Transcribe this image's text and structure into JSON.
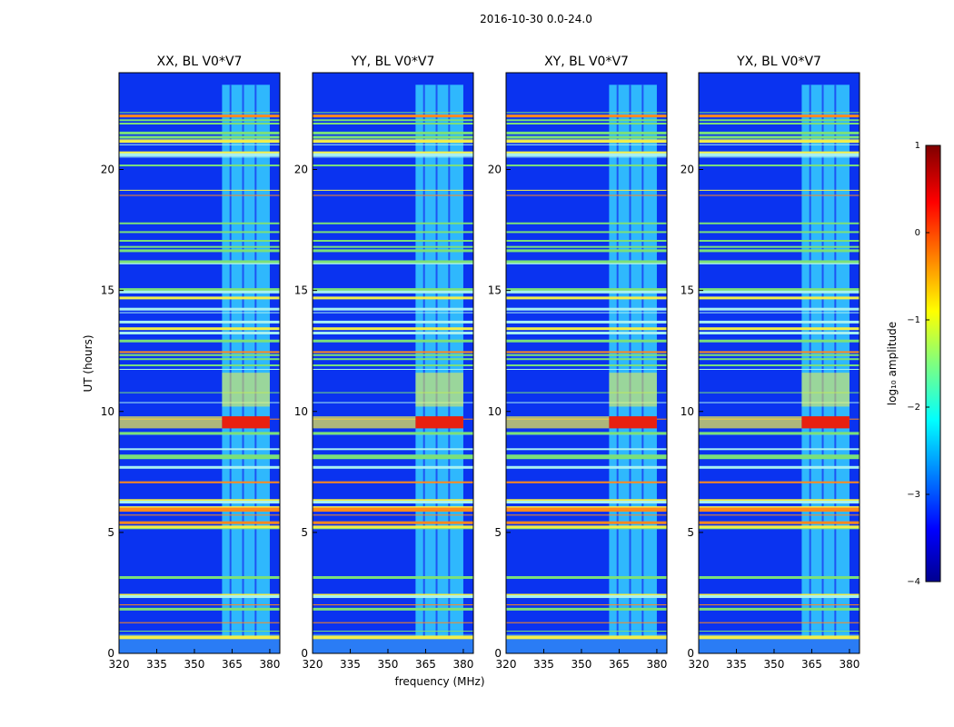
{
  "figure_title": "2016-10-30 0.0-24.0",
  "chart_data": [
    {
      "type": "heatmap",
      "title": "XX, BL V0*V7",
      "xlabel": "frequency (MHz)",
      "ylabel": "UT (hours)",
      "xlim": [
        320,
        384
      ],
      "ylim": [
        0,
        24
      ],
      "xticks": [
        320,
        335,
        350,
        365,
        380
      ],
      "yticks": [
        0,
        5,
        10,
        15,
        20
      ],
      "rfi_band_mhz": [
        361,
        380
      ],
      "strong_burst_ut_hours": [
        9.3,
        9.8
      ]
    },
    {
      "type": "heatmap",
      "title": "YY, BL V0*V7",
      "xlabel": "frequency (MHz)",
      "ylabel": "",
      "xlim": [
        320,
        384
      ],
      "ylim": [
        0,
        24
      ],
      "xticks": [
        320,
        335,
        350,
        365,
        380
      ],
      "yticks": [
        0,
        5,
        10,
        15,
        20
      ],
      "rfi_band_mhz": [
        361,
        380
      ],
      "strong_burst_ut_hours": [
        9.3,
        9.8
      ]
    },
    {
      "type": "heatmap",
      "title": "XY, BL V0*V7",
      "xlabel": "frequency (MHz)",
      "ylabel": "",
      "xlim": [
        320,
        384
      ],
      "ylim": [
        0,
        24
      ],
      "xticks": [
        320,
        335,
        350,
        365,
        380
      ],
      "yticks": [
        0,
        5,
        10,
        15,
        20
      ],
      "rfi_band_mhz": [
        361,
        380
      ],
      "strong_burst_ut_hours": [
        9.3,
        9.8
      ]
    },
    {
      "type": "heatmap",
      "title": "YX, BL V0*V7",
      "xlabel": "frequency (MHz)",
      "ylabel": "",
      "xlim": [
        320,
        384
      ],
      "ylim": [
        0,
        24
      ],
      "xticks": [
        320,
        335,
        350,
        365,
        380
      ],
      "yticks": [
        0,
        5,
        10,
        15,
        20
      ],
      "rfi_band_mhz": [
        361,
        380
      ],
      "strong_burst_ut_hours": [
        9.3,
        9.8
      ]
    }
  ],
  "colorbar": {
    "label": "log₁₀ amplitude",
    "range": [
      -4,
      1
    ],
    "ticks": [
      1,
      0,
      -1,
      -2,
      -3,
      -4
    ],
    "tick_labels": [
      "1",
      "0",
      "−1",
      "−2",
      "−3",
      "−4"
    ],
    "colormap": "jet"
  },
  "colors": {
    "background": "#0a33f0",
    "rfi_band": "#36d0ff",
    "line_green": "#7be07a",
    "line_yellow": "#f2ee4a",
    "line_orange": "#ff8a1c",
    "burst": "#e82010"
  }
}
